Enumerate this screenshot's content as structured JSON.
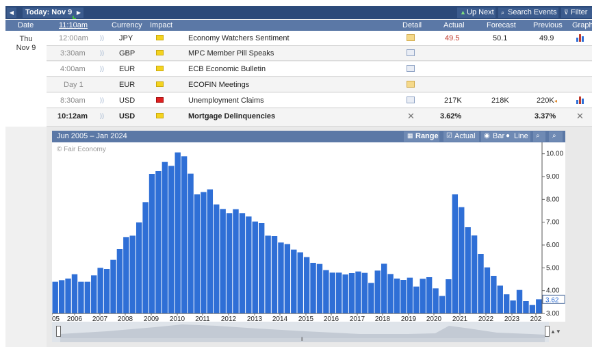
{
  "nav": {
    "prev_glyph": "◀",
    "next_glyph": "▶",
    "today_label": "Today: Nov 9",
    "up_next": "Up Next",
    "search_events": "Search Events",
    "filter": "Filter"
  },
  "columns": [
    "Date",
    "11:10am",
    "Currency",
    "Impact",
    "Detail",
    "Actual",
    "Forecast",
    "Previous",
    "Graph"
  ],
  "day": {
    "weekday": "Thu",
    "date": "Nov 9"
  },
  "events": [
    {
      "time": "12:00am",
      "currency": "JPY",
      "impact": "yellow",
      "name": "Economy Watchers Sentiment",
      "actual": "49.5",
      "forecast": "50.1",
      "previous": "49.9",
      "graph": true
    },
    {
      "time": "3:30am",
      "currency": "GBP",
      "impact": "yellow",
      "name": "MPC Member Pill Speaks",
      "actual": "",
      "forecast": "",
      "previous": "",
      "graph": false
    },
    {
      "time": "4:00am",
      "currency": "EUR",
      "impact": "yellow",
      "name": "ECB Economic Bulletin",
      "actual": "",
      "forecast": "",
      "previous": "",
      "graph": false
    },
    {
      "time": "Day 1",
      "currency": "EUR",
      "impact": "yellow",
      "name": "ECOFIN Meetings",
      "actual": "",
      "forecast": "",
      "previous": "",
      "graph": false
    },
    {
      "time": "8:30am",
      "currency": "USD",
      "impact": "red",
      "name": "Unemployment Claims",
      "actual": "217K",
      "forecast": "218K",
      "previous": "220K",
      "graph": true
    },
    {
      "time": "10:12am",
      "currency": "USD",
      "impact": "yellow",
      "name": "Mortgage Delinquencies",
      "actual": "3.62%",
      "forecast": "",
      "previous": "3.37%",
      "graph": false
    }
  ],
  "chart_panel": {
    "range_text": "Jun 2005 – Jan 2024",
    "range_btn": "Range",
    "actual_toggle": "Actual",
    "bar_label": "Bar",
    "line_label": "Line",
    "watermark": "© Fair Economy",
    "current_value_label": "3.62"
  },
  "colors": {
    "bar": "#2f6fd6",
    "nav": "#2c4a7a",
    "header": "#5b78a6",
    "actual_red": "#c0392b"
  },
  "chart_data": {
    "type": "bar",
    "title": "",
    "xlabel": "",
    "ylabel": "",
    "ylim": [
      3.0,
      10.5
    ],
    "y_ticks": [
      "10.00",
      "9.00",
      "8.00",
      "7.00",
      "6.00",
      "5.00",
      "4.00",
      "3.00"
    ],
    "x_ticks": [
      "05",
      "2006",
      "2007",
      "2008",
      "2009",
      "2010",
      "2011",
      "2012",
      "2013",
      "2014",
      "2015",
      "2016",
      "2017",
      "2018",
      "2019",
      "2020",
      "2021",
      "2022",
      "2023",
      "202"
    ],
    "values": [
      4.39,
      4.46,
      4.53,
      4.72,
      4.39,
      4.39,
      4.67,
      5.0,
      4.95,
      5.35,
      5.82,
      6.35,
      6.41,
      6.99,
      7.88,
      9.12,
      9.24,
      9.64,
      9.47,
      10.06,
      9.89,
      9.13,
      8.22,
      8.32,
      8.44,
      7.78,
      7.58,
      7.4,
      7.57,
      7.4,
      7.25,
      7.03,
      6.96,
      6.41,
      6.39,
      6.11,
      6.04,
      5.8,
      5.68,
      5.47,
      5.22,
      5.17,
      4.9,
      4.79,
      4.79,
      4.71,
      4.77,
      4.84,
      4.78,
      4.34,
      4.88,
      5.18,
      4.73,
      4.53,
      4.47,
      4.57,
      4.18,
      4.52,
      4.59,
      4.1,
      3.77,
      4.5,
      8.22,
      7.66,
      6.78,
      6.42,
      5.61,
      5.02,
      4.65,
      4.22,
      3.84,
      3.57,
      4.03,
      3.54,
      3.37,
      3.62
    ]
  }
}
